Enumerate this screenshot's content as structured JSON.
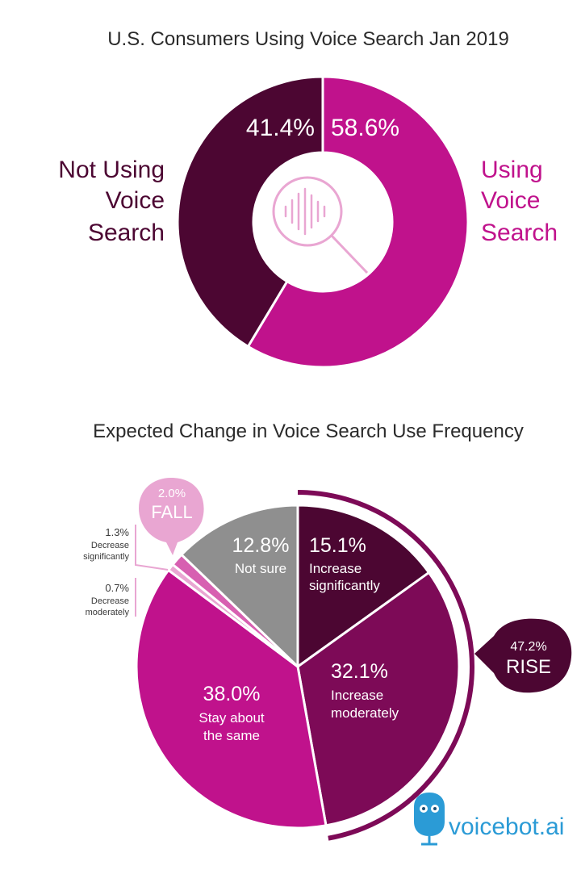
{
  "colors": {
    "magenta": "#c0128c",
    "dark_purple": "#4c0632",
    "mid_purple": "#7d0a57",
    "gray": "#8f8f8f",
    "light_pink": "#e9a6d2",
    "brand_blue": "#2b9bd6"
  },
  "chart_data": [
    {
      "type": "pie",
      "title": "U.S. Consumers Using Voice Search Jan 2019",
      "slices": [
        {
          "label": "Using Voice Search",
          "label_lines": [
            "Using",
            "Voice",
            "Search"
          ],
          "value": 58.6,
          "value_text": "58.6%",
          "color": "#c0128c"
        },
        {
          "label": "Not Using Voice Search",
          "label_lines": [
            "Not Using",
            "Voice",
            "Search"
          ],
          "value": 41.4,
          "value_text": "41.4%",
          "color": "#4c0632"
        }
      ],
      "center_icon": "magnifier-soundwave-icon"
    },
    {
      "type": "pie",
      "title": "Expected Change in Voice Search Use Frequency",
      "slices": [
        {
          "label": "Increase significantly",
          "label_lines": [
            "Increase",
            "significantly"
          ],
          "value": 15.1,
          "value_text": "15.1%",
          "color": "#4c0632"
        },
        {
          "label": "Increase moderately",
          "label_lines": [
            "Increase",
            "moderately"
          ],
          "value": 32.1,
          "value_text": "32.1%",
          "color": "#7d0a57"
        },
        {
          "label": "Stay about the same",
          "label_lines": [
            "Stay about",
            "the same"
          ],
          "value": 38.0,
          "value_text": "38.0%",
          "color": "#c0128c"
        },
        {
          "label": "Decrease moderately",
          "label_lines": [
            "Decrease",
            "moderately"
          ],
          "value": 0.7,
          "value_text": "0.7%",
          "color": "#e9a6d2"
        },
        {
          "label": "Decrease significantly",
          "label_lines": [
            "Decrease",
            "significantly"
          ],
          "value": 1.3,
          "value_text": "1.3%",
          "color": "#d760b1"
        },
        {
          "label": "Not sure",
          "label_lines": [
            "Not sure"
          ],
          "value": 12.8,
          "value_text": "12.8%",
          "color": "#8f8f8f"
        }
      ],
      "callouts": [
        {
          "value_text": "47.2%",
          "label": "RISE"
        },
        {
          "value_text": "2.0%",
          "label": "FALL"
        }
      ]
    }
  ],
  "brand": {
    "name": "voicebot.ai"
  }
}
